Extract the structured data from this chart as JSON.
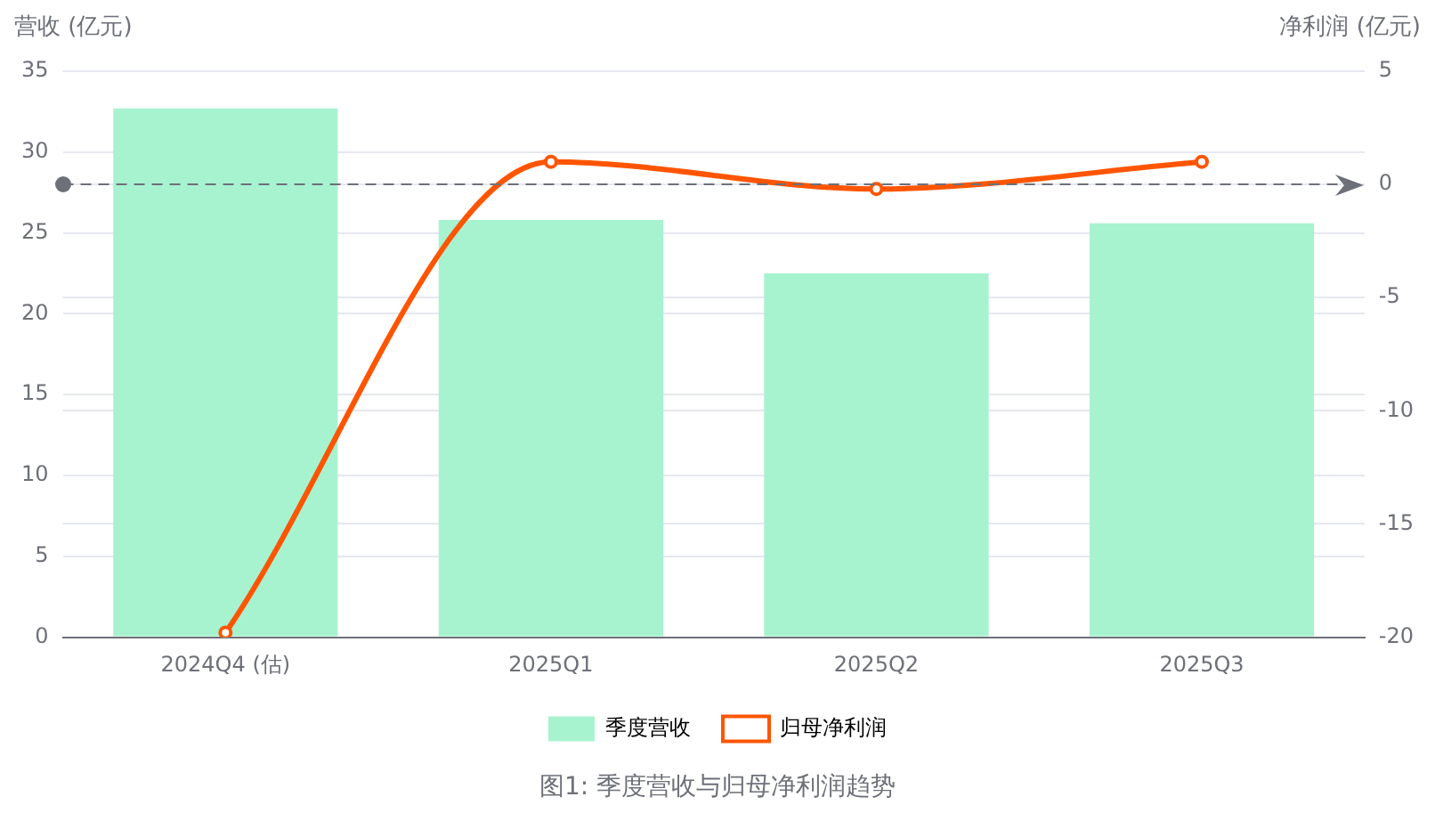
{
  "chart_data": {
    "type": "bar",
    "title": "图1: 季度营收与归母净利润趋势",
    "ylabel": "营收 (亿元)",
    "y2label": "净利润 (亿元)",
    "categories": [
      "2024Q4 (估)",
      "2025Q1",
      "2025Q2",
      "2025Q3"
    ],
    "series": [
      {
        "name": "季度营收",
        "color": "#a7f3d0",
        "values": [
          32.7,
          25.8,
          22.5,
          25.6
        ]
      },
      {
        "name": "归母净利润",
        "type": "line",
        "axis": "y2",
        "color": "#ff5500",
        "values": [
          -19.8,
          1.0,
          -0.2,
          1.0
        ]
      }
    ],
    "ylim": [
      0,
      35
    ],
    "yticks": [
      0,
      5,
      10,
      15,
      20,
      25,
      30,
      35
    ],
    "y2lim": [
      -20,
      5
    ],
    "y2ticks": [
      -20,
      -15,
      -10,
      -5,
      0,
      5
    ],
    "ref_lines": [
      {
        "axis": "y2",
        "value": 0,
        "color": "#6e7079",
        "line_style": "dashed"
      }
    ],
    "grid": true,
    "legend": "bottom",
    "marker": "circle",
    "line_style": "solid"
  }
}
